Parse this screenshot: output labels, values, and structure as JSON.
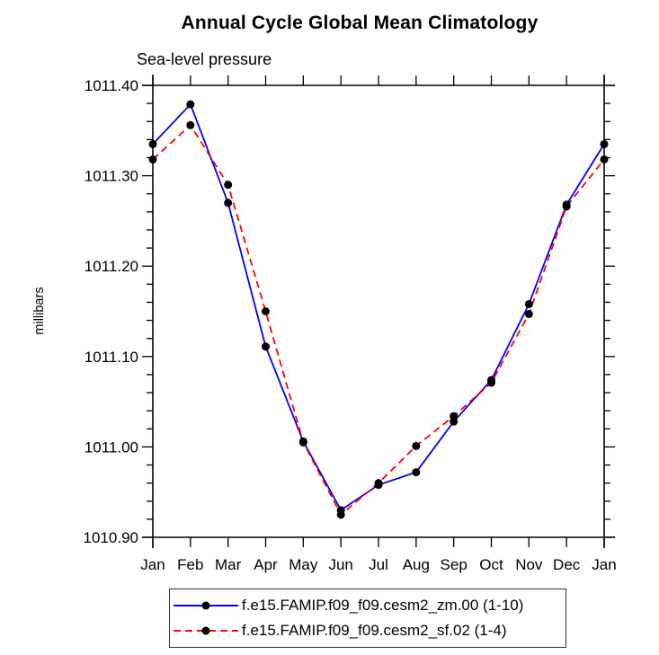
{
  "title": "Annual Cycle Global Mean Climatology",
  "subtitle": "Sea-level pressure",
  "chart_data": {
    "type": "line",
    "title": "Annual Cycle Global Mean Climatology",
    "subtitle": "Sea-level pressure",
    "ylabel": "millibars",
    "xlabel": "",
    "ylim": [
      1010.9,
      1011.4
    ],
    "y_major_tick_step": 0.1,
    "y_minor_tick_step": 0.02,
    "y_tick_labels": [
      "1010.90",
      "1011.00",
      "1011.10",
      "1011.20",
      "1011.30",
      "1011.40"
    ],
    "x_categories": [
      "Jan",
      "Feb",
      "Mar",
      "Apr",
      "May",
      "Jun",
      "Jul",
      "Aug",
      "Sep",
      "Oct",
      "Nov",
      "Dec",
      "Jan"
    ],
    "grid": false,
    "legend_position": "bottom",
    "axis_color": "#000000",
    "marker_color": "#000000",
    "series": [
      {
        "name": "f.e15.FAMIP.f09_f09.cesm2_zm.00 (1-10)",
        "color": "#0000ff",
        "line_style": "solid",
        "marker": "filled-circle",
        "values": [
          1011.335,
          1011.379,
          1011.27,
          1011.111,
          1011.006,
          1010.93,
          1010.958,
          1010.972,
          1011.028,
          1011.074,
          1011.158,
          1011.268,
          1011.335
        ]
      },
      {
        "name": "f.e15.FAMIP.f09_f09.cesm2_sf.02 (1-4)",
        "color": "#ff0000",
        "line_style": "dashed",
        "marker": "filled-circle",
        "values": [
          1011.318,
          1011.356,
          1011.29,
          1011.15,
          1011.005,
          1010.925,
          1010.96,
          1011.001,
          1011.034,
          1011.071,
          1011.147,
          1011.266,
          1011.318
        ]
      }
    ]
  }
}
